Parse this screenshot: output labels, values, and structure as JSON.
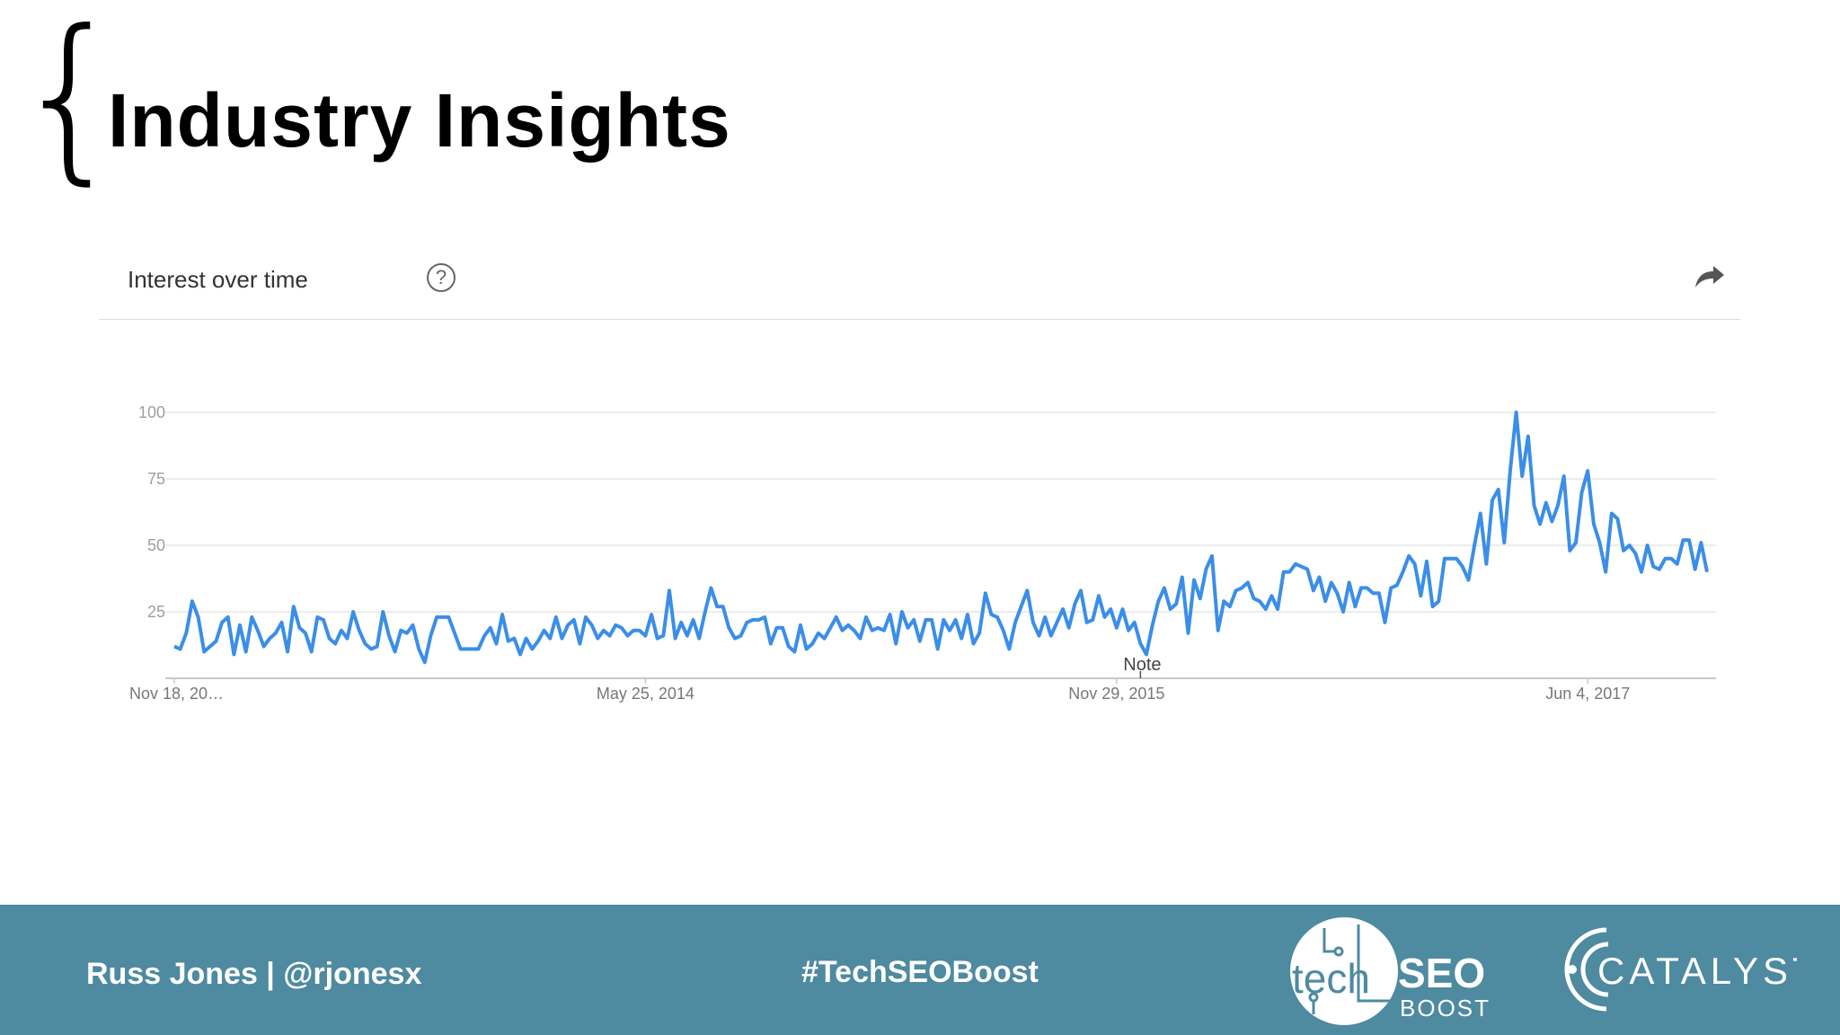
{
  "slide": {
    "title": "Industry Insights",
    "brace": "{"
  },
  "panel": {
    "title": "Interest over time",
    "help_glyph": "?",
    "help_icon": "question-circle-icon",
    "share_icon": "share-arrow-icon"
  },
  "chart_data": {
    "type": "line",
    "ylim": [
      0,
      100
    ],
    "yticks": [
      25,
      50,
      75,
      100
    ],
    "xtick_labels": [
      "Nov 18, 20…",
      "May 25, 2014",
      "Nov 29, 2015",
      "Jun 4, 2017"
    ],
    "xtick_index": [
      0,
      79,
      158,
      237
    ],
    "annotation": {
      "text": "Note",
      "index": 162
    },
    "grid": true,
    "color": "#3b8ee8",
    "values": [
      12,
      11,
      17,
      29,
      23,
      10,
      12,
      14,
      21,
      23,
      9,
      20,
      10,
      23,
      18,
      12,
      15,
      17,
      21,
      10,
      27,
      19,
      17,
      10,
      23,
      22,
      15,
      13,
      18,
      15,
      25,
      18,
      13,
      11,
      12,
      25,
      16,
      10,
      18,
      17,
      20,
      11,
      6,
      16,
      23,
      23,
      23,
      17,
      11,
      11,
      11,
      11,
      16,
      19,
      13,
      24,
      14,
      15,
      9,
      15,
      11,
      14,
      18,
      15,
      23,
      15,
      20,
      22,
      13,
      23,
      20,
      15,
      18,
      16,
      20,
      19,
      16,
      18,
      18,
      16,
      24,
      15,
      16,
      33,
      15,
      21,
      16,
      22,
      15,
      25,
      34,
      27,
      27,
      19,
      15,
      16,
      21,
      22,
      22,
      23,
      13,
      19,
      19,
      12,
      10,
      20,
      11,
      13,
      17,
      15,
      19,
      23,
      18,
      20,
      18,
      15,
      23,
      18,
      19,
      18,
      24,
      13,
      25,
      19,
      22,
      14,
      22,
      22,
      11,
      22,
      18,
      22,
      15,
      24,
      13,
      17,
      32,
      24,
      23,
      18,
      11,
      21,
      27,
      33,
      21,
      16,
      23,
      16,
      21,
      26,
      19,
      28,
      33,
      21,
      22,
      31,
      23,
      26,
      19,
      26,
      18,
      21,
      13,
      9,
      20,
      29,
      34,
      26,
      28,
      38,
      17,
      37,
      30,
      41,
      46,
      18,
      29,
      27,
      33,
      34,
      36,
      30,
      29,
      26,
      31,
      26,
      40,
      40,
      43,
      42,
      41,
      33,
      38,
      29,
      36,
      32,
      25,
      36,
      27,
      34,
      34,
      32,
      32,
      21,
      34,
      35,
      40,
      46,
      43,
      31,
      44,
      27,
      29,
      45,
      45,
      45,
      42,
      37,
      50,
      62,
      43,
      67,
      71,
      51,
      78,
      100,
      76,
      91,
      65,
      58,
      66,
      59,
      65,
      76,
      48,
      51,
      70,
      78,
      58,
      51,
      40,
      62,
      60,
      48,
      50,
      47,
      40,
      50,
      42,
      41,
      45,
      45,
      43,
      52,
      52,
      41,
      51,
      40
    ]
  },
  "footer": {
    "presenter": "Russ Jones  |  @rjonesx",
    "hashtag": "#TechSEOBoost",
    "logo1": {
      "word1": "tech",
      "word2": "SEO",
      "word3": "BOOST"
    },
    "logo2": {
      "word": "CATALYST"
    }
  }
}
